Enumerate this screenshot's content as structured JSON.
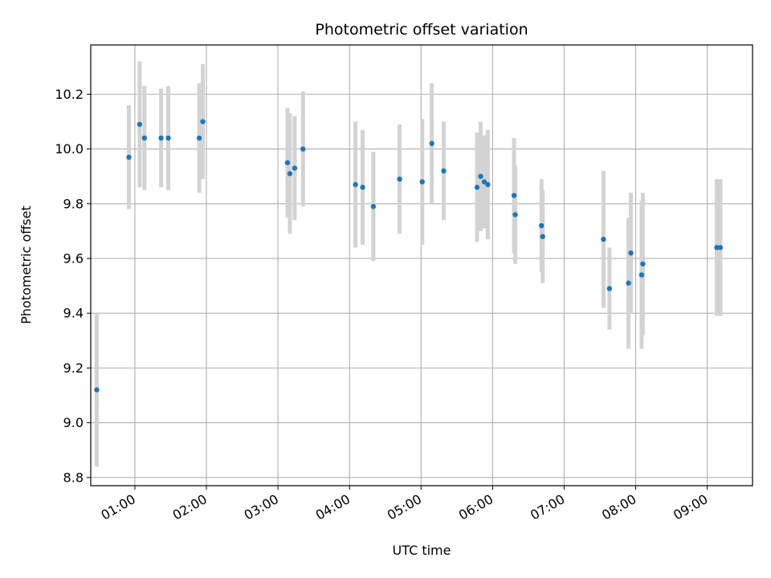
{
  "chart_data": {
    "type": "scatter",
    "title": "Photometric offset variation",
    "xlabel": "UTC time",
    "ylabel": "Photometric offset",
    "x_ticks": [
      "01:00",
      "02:00",
      "03:00",
      "04:00",
      "05:00",
      "06:00",
      "07:00",
      "08:00",
      "09:00"
    ],
    "y_ticks": [
      "8.8",
      "9.0",
      "9.2",
      "9.4",
      "9.6",
      "9.8",
      "10.0",
      "10.2"
    ],
    "xlim": [
      "00:23",
      "09:38"
    ],
    "ylim": [
      8.77,
      10.38
    ],
    "grid": true,
    "colors": {
      "marker": "#1f77b4",
      "errorbar": "#d3d3d3",
      "grid": "#b0b0b0"
    },
    "points": [
      {
        "x": "00:28",
        "y": 9.12,
        "err": 0.28
      },
      {
        "x": "00:55",
        "y": 9.97,
        "err": 0.19
      },
      {
        "x": "01:04",
        "y": 10.09,
        "err": 0.23
      },
      {
        "x": "01:08",
        "y": 10.04,
        "err": 0.19
      },
      {
        "x": "01:22",
        "y": 10.04,
        "err": 0.18
      },
      {
        "x": "01:28",
        "y": 10.04,
        "err": 0.19
      },
      {
        "x": "01:54",
        "y": 10.04,
        "err": 0.2
      },
      {
        "x": "01:57",
        "y": 10.1,
        "err": 0.21
      },
      {
        "x": "03:08",
        "y": 9.95,
        "err": 0.2
      },
      {
        "x": "03:10",
        "y": 9.91,
        "err": 0.22
      },
      {
        "x": "03:14",
        "y": 9.93,
        "err": 0.19
      },
      {
        "x": "03:21",
        "y": 10.0,
        "err": 0.21
      },
      {
        "x": "04:05",
        "y": 9.87,
        "err": 0.23
      },
      {
        "x": "04:11",
        "y": 9.86,
        "err": 0.21
      },
      {
        "x": "04:20",
        "y": 9.79,
        "err": 0.2
      },
      {
        "x": "04:42",
        "y": 9.89,
        "err": 0.2
      },
      {
        "x": "05:01",
        "y": 9.88,
        "err": 0.23
      },
      {
        "x": "05:09",
        "y": 10.02,
        "err": 0.22
      },
      {
        "x": "05:19",
        "y": 9.92,
        "err": 0.18
      },
      {
        "x": "05:47",
        "y": 9.86,
        "err": 0.2
      },
      {
        "x": "05:50",
        "y": 9.9,
        "err": 0.2
      },
      {
        "x": "05:53",
        "y": 9.88,
        "err": 0.17
      },
      {
        "x": "05:56",
        "y": 9.87,
        "err": 0.2
      },
      {
        "x": "06:18",
        "y": 9.83,
        "err": 0.21
      },
      {
        "x": "06:19",
        "y": 9.76,
        "err": 0.18
      },
      {
        "x": "06:41",
        "y": 9.72,
        "err": 0.17
      },
      {
        "x": "06:42",
        "y": 9.68,
        "err": 0.17
      },
      {
        "x": "07:33",
        "y": 9.67,
        "err": 0.25
      },
      {
        "x": "07:38",
        "y": 9.49,
        "err": 0.15
      },
      {
        "x": "07:54",
        "y": 9.51,
        "err": 0.24
      },
      {
        "x": "07:56",
        "y": 9.62,
        "err": 0.22
      },
      {
        "x": "08:05",
        "y": 9.54,
        "err": 0.27
      },
      {
        "x": "08:06",
        "y": 9.58,
        "err": 0.26
      },
      {
        "x": "09:08",
        "y": 9.64,
        "err": 0.25
      },
      {
        "x": "09:11",
        "y": 9.64,
        "err": 0.25
      }
    ]
  }
}
